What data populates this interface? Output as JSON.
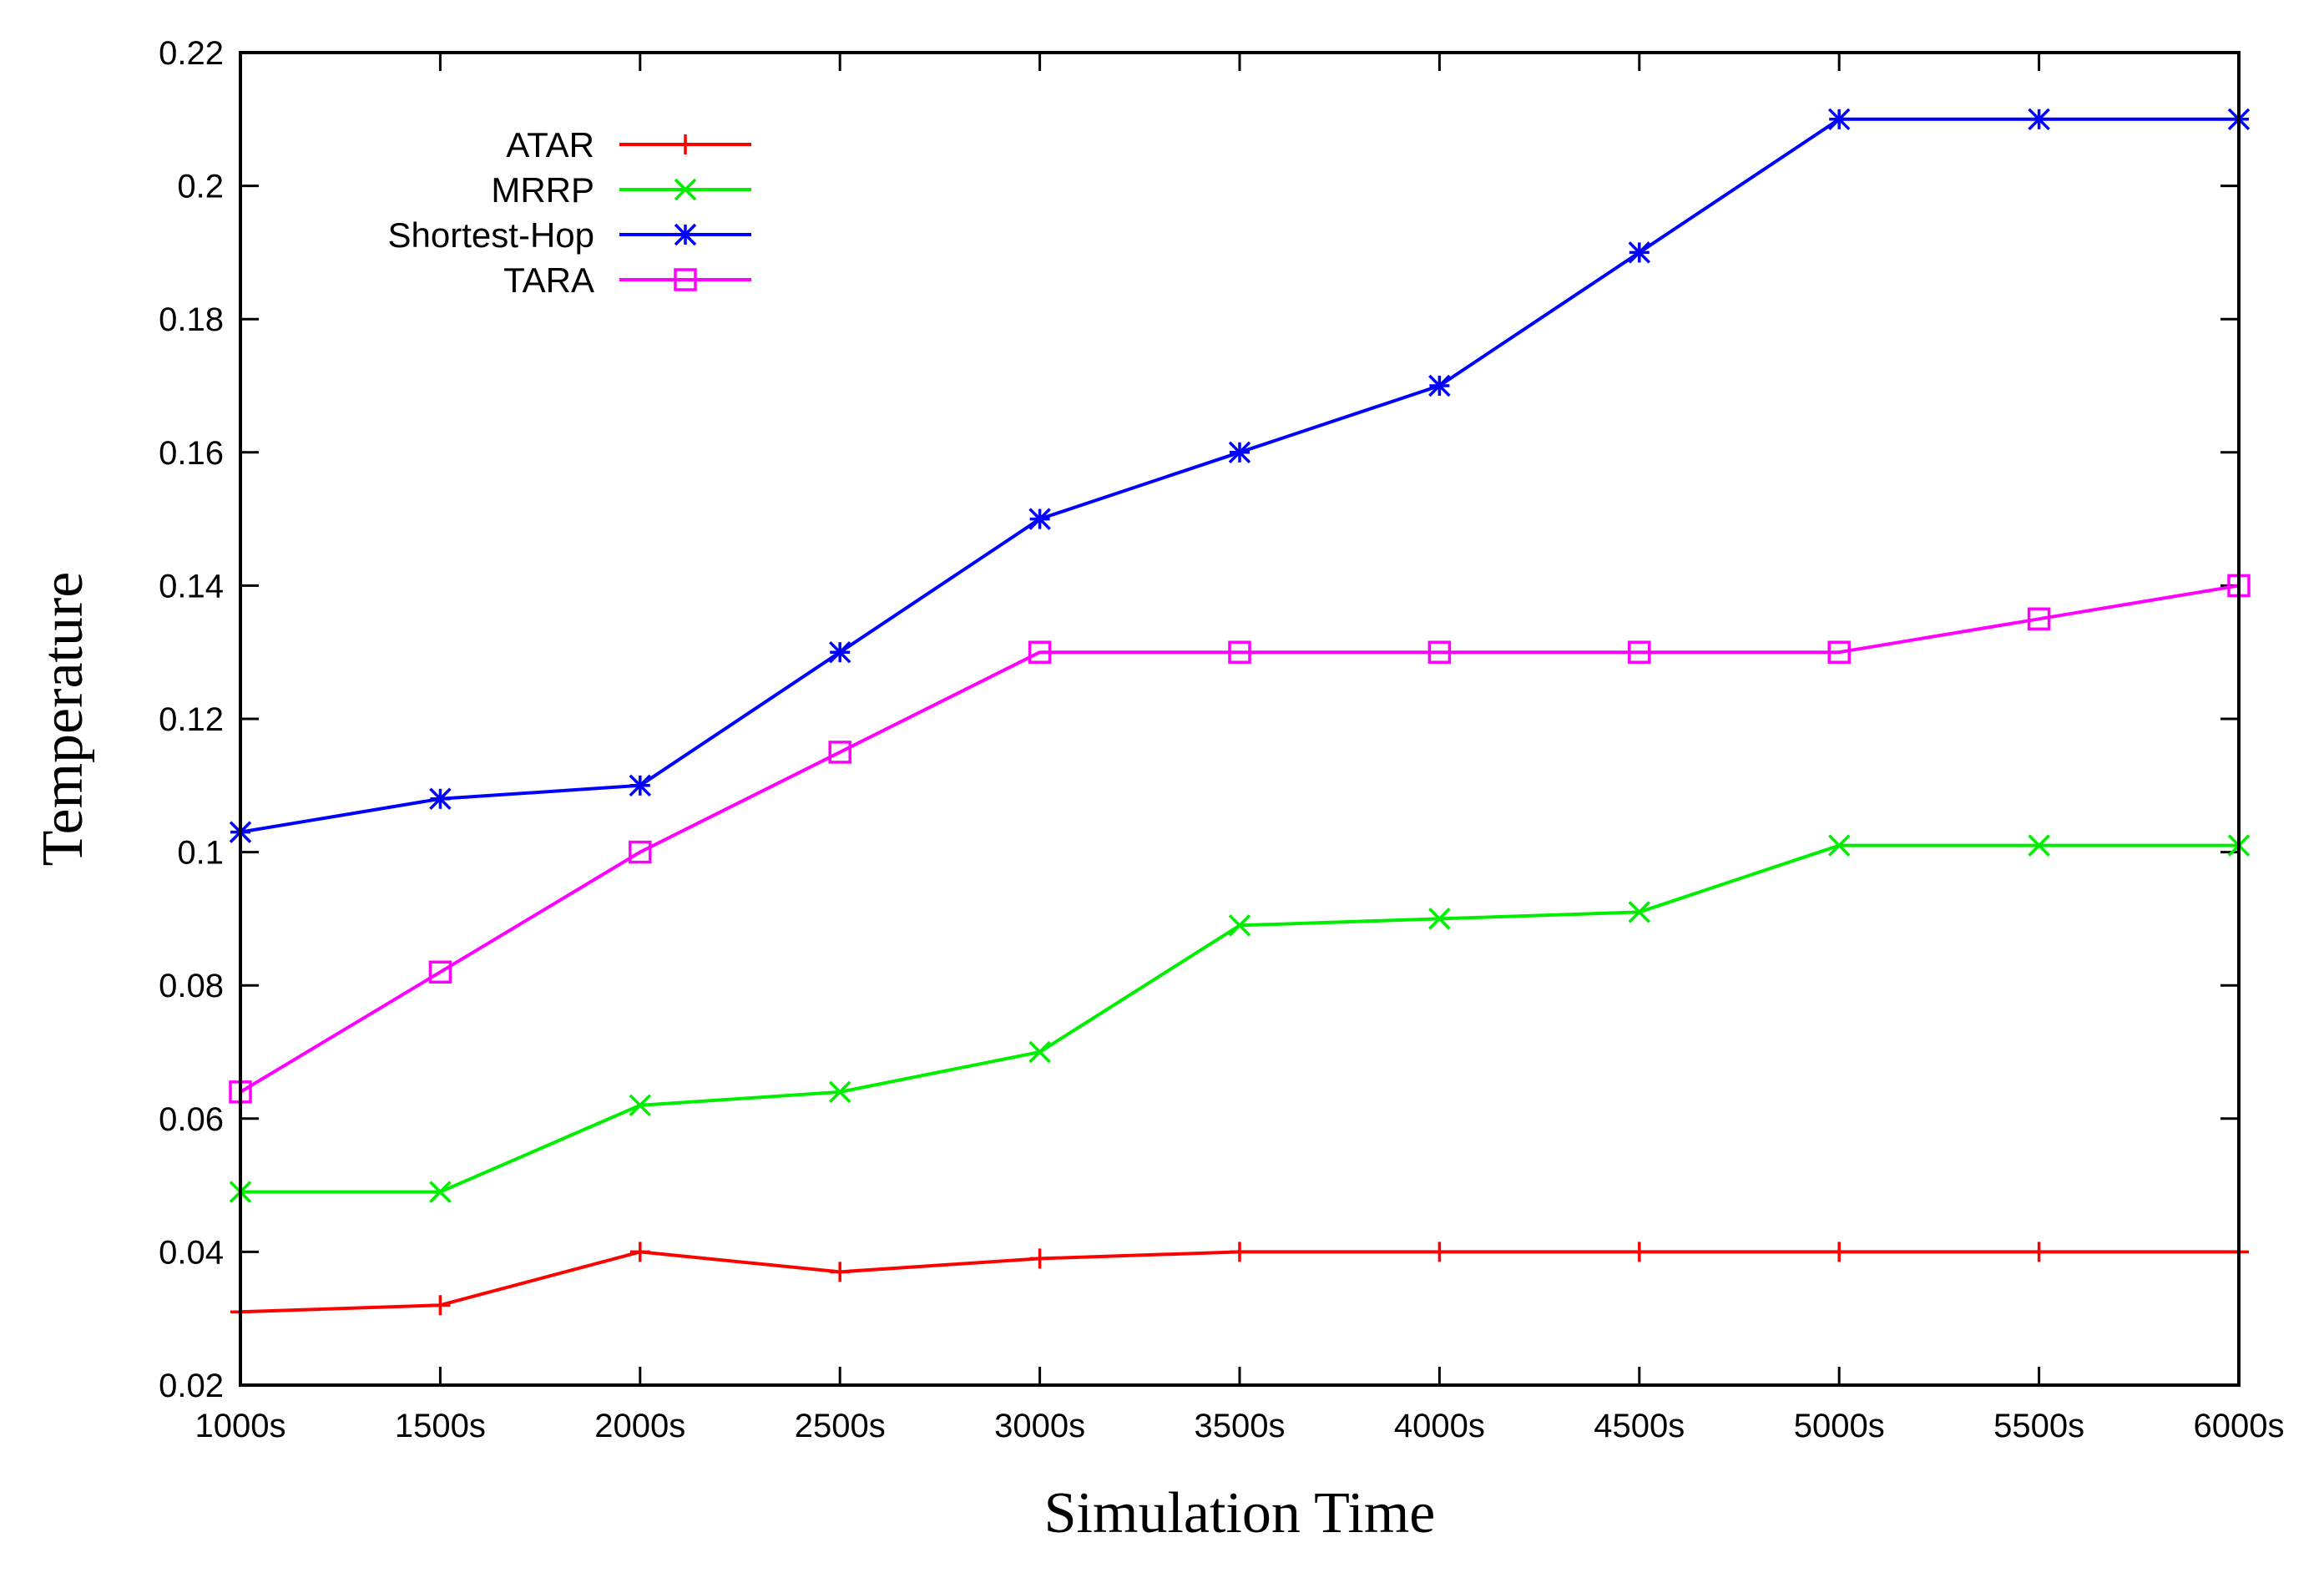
{
  "chart_data": {
    "type": "line",
    "title": "",
    "xlabel": "Simulation Time",
    "ylabel": "Temperature",
    "categories": [
      "1000s",
      "1500s",
      "2000s",
      "2500s",
      "3000s",
      "3500s",
      "4000s",
      "4500s",
      "5000s",
      "5500s",
      "6000s"
    ],
    "y_ticks": [
      "0.02",
      "0.04",
      "0.06",
      "0.08",
      "0.1",
      "0.12",
      "0.14",
      "0.16",
      "0.18",
      "0.2",
      "0.22"
    ],
    "ylim": [
      0.02,
      0.22
    ],
    "legend_position": "top-left",
    "series": [
      {
        "name": "ATAR",
        "color": "#ff0000",
        "marker": "plus",
        "values": [
          0.031,
          0.032,
          0.04,
          0.037,
          0.039,
          0.04,
          0.04,
          0.04,
          0.04,
          0.04,
          0.04
        ]
      },
      {
        "name": "MRRP",
        "color": "#00ee00",
        "marker": "cross",
        "values": [
          0.049,
          0.049,
          0.062,
          0.064,
          0.07,
          0.089,
          0.09,
          0.091,
          0.101,
          0.101,
          0.101
        ]
      },
      {
        "name": "Shortest-Hop",
        "color": "#0000ff",
        "marker": "star",
        "values": [
          0.103,
          0.108,
          0.11,
          0.13,
          0.15,
          0.16,
          0.17,
          0.19,
          0.21,
          0.21,
          0.21
        ]
      },
      {
        "name": "TARA",
        "color": "#ff00ff",
        "marker": "square",
        "values": [
          0.064,
          0.082,
          0.1,
          0.115,
          0.13,
          0.13,
          0.13,
          0.13,
          0.13,
          0.135,
          0.14
        ]
      }
    ]
  }
}
